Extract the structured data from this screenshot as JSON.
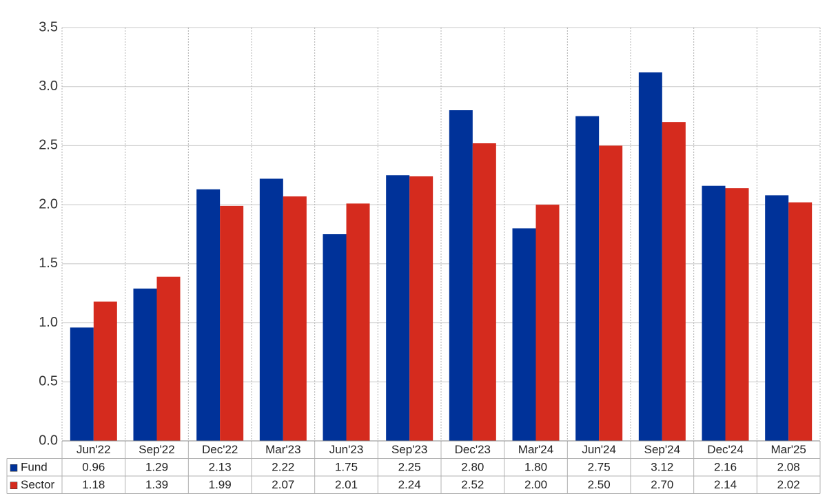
{
  "chart_data": {
    "type": "bar",
    "categories": [
      "Jun'22",
      "Sep'22",
      "Dec'22",
      "Mar'23",
      "Jun'23",
      "Sep'23",
      "Dec'23",
      "Mar'24",
      "Jun'24",
      "Sep'24",
      "Dec'24",
      "Mar'25"
    ],
    "series": [
      {
        "name": "Fund",
        "color": "#003299",
        "values": [
          0.96,
          1.29,
          2.13,
          2.22,
          1.75,
          2.25,
          2.8,
          1.8,
          2.75,
          3.12,
          2.16,
          2.08
        ],
        "value_labels": [
          "0.96",
          "1.29",
          "2.13",
          "2.22",
          "1.75",
          "2.25",
          "2.80",
          "1.80",
          "2.75",
          "3.12",
          "2.16",
          "2.08"
        ]
      },
      {
        "name": "Sector",
        "color": "#d52b1e",
        "values": [
          1.18,
          1.39,
          1.99,
          2.07,
          2.01,
          2.24,
          2.52,
          2.0,
          2.5,
          2.7,
          2.14,
          2.02
        ],
        "value_labels": [
          "1.18",
          "1.39",
          "1.99",
          "2.07",
          "2.01",
          "2.24",
          "2.52",
          "2.00",
          "2.50",
          "2.70",
          "2.14",
          "2.02"
        ]
      }
    ],
    "ylim": [
      0,
      3.5
    ],
    "yticks": [
      {
        "value": 0,
        "label": "0.0"
      },
      0.5,
      {
        "value": 1,
        "label": "1.0"
      },
      1.5,
      {
        "value": 2,
        "label": "2.0"
      },
      2.5,
      {
        "value": 3,
        "label": "3.0"
      },
      3.5
    ],
    "grid": true
  }
}
